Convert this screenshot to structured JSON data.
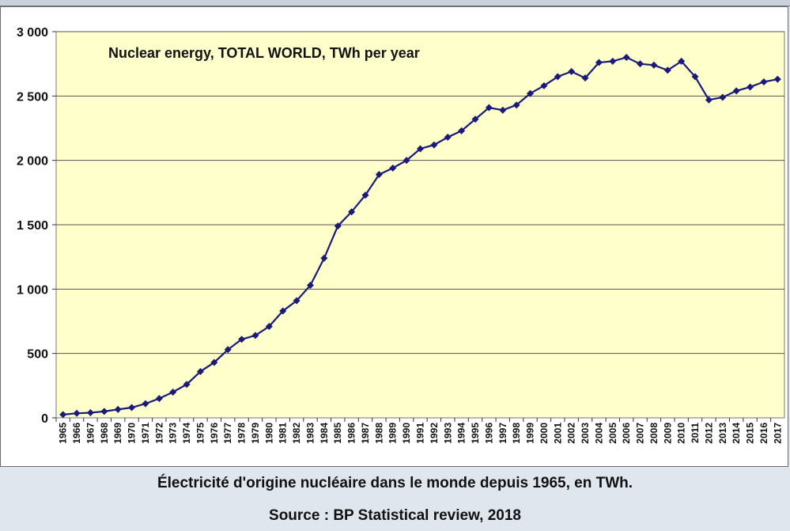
{
  "caption": {
    "line1": "Électricité d'origine nucléaire dans le monde depuis 1965, en TWh.",
    "line2": "Source : BP Statistical review, 2018"
  },
  "colors": {
    "plot_bg": "#ffffcc",
    "series": "#1a1a7a",
    "grid": "#555555"
  },
  "chart_data": {
    "type": "line",
    "title": "Nuclear energy, TOTAL WORLD, TWh per year",
    "xlabel": "",
    "ylabel": "",
    "ylim": [
      0,
      3000
    ],
    "yticks": [
      0,
      500,
      1000,
      1500,
      2000,
      2500,
      3000
    ],
    "ytick_labels": [
      "0",
      "500",
      "1 000",
      "1 500",
      "2 000",
      "2 500",
      "3 000"
    ],
    "grid": true,
    "categories": [
      "1965",
      "1966",
      "1967",
      "1968",
      "1969",
      "1970",
      "1971",
      "1972",
      "1973",
      "1974",
      "1975",
      "1976",
      "1977",
      "1978",
      "1979",
      "1980",
      "1981",
      "1982",
      "1983",
      "1984",
      "1985",
      "1986",
      "1987",
      "1988",
      "1989",
      "1990",
      "1991",
      "1992",
      "1993",
      "1994",
      "1995",
      "1996",
      "1997",
      "1998",
      "1999",
      "2000",
      "2001",
      "2002",
      "2003",
      "2004",
      "2005",
      "2006",
      "2007",
      "2008",
      "2009",
      "2010",
      "2011",
      "2012",
      "2013",
      "2014",
      "2015",
      "2016",
      "2017"
    ],
    "series": [
      {
        "name": "Nuclear energy, TOTAL WORLD",
        "values": [
          25,
          35,
          40,
          50,
          65,
          80,
          110,
          150,
          200,
          260,
          360,
          430,
          530,
          610,
          640,
          710,
          830,
          910,
          1030,
          1240,
          1490,
          1600,
          1730,
          1890,
          1940,
          2000,
          2090,
          2120,
          2180,
          2230,
          2320,
          2410,
          2390,
          2430,
          2520,
          2580,
          2650,
          2690,
          2640,
          2760,
          2770,
          2800,
          2750,
          2740,
          2700,
          2770,
          2650,
          2470,
          2490,
          2540,
          2570,
          2610,
          2630
        ]
      }
    ]
  }
}
